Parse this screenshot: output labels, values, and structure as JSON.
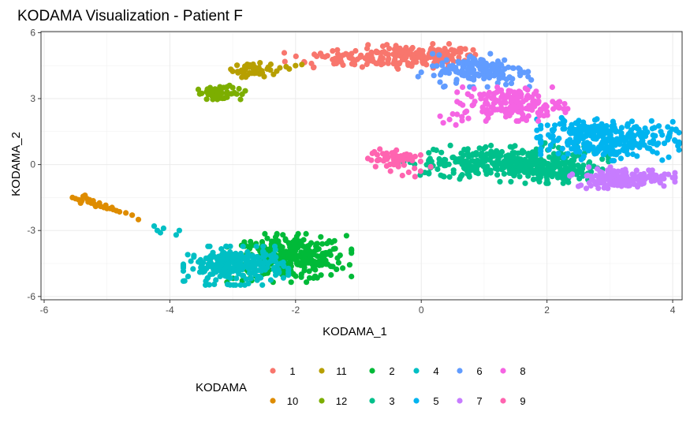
{
  "chart_data": {
    "type": "scatter",
    "title": "KODAMA Visualization - Patient F",
    "xlabel": "KODAMA_1",
    "ylabel": "KODAMA_2",
    "xlim": [
      -6.05,
      4.15
    ],
    "ylim": [
      -6.15,
      6.05
    ],
    "xticks": [
      -6,
      -4,
      -2,
      0,
      2,
      4
    ],
    "yticks": [
      -6,
      -3,
      0,
      3,
      6
    ],
    "grid": true,
    "legend_title": "KODAMA",
    "legend_position": "bottom",
    "series": [
      {
        "name": "1",
        "color": "#F8766D",
        "clusters": [
          {
            "cx": -0.2,
            "cy": 4.9,
            "sx": 0.55,
            "sy": 0.25,
            "n": 150
          },
          {
            "cx": -1.3,
            "cy": 4.85,
            "sx": 0.4,
            "sy": 0.2,
            "n": 40
          },
          {
            "cx": 0.2,
            "cy": 5.05,
            "sx": 0.3,
            "sy": 0.2,
            "n": 40
          }
        ]
      },
      {
        "name": "10",
        "color": "#DE8C00",
        "points": [
          [
            -5.55,
            -1.5
          ],
          [
            -5.5,
            -1.55
          ],
          [
            -5.45,
            -1.6
          ],
          [
            -5.4,
            -1.65
          ],
          [
            -5.35,
            -1.4
          ],
          [
            -5.3,
            -1.7
          ],
          [
            -5.25,
            -1.75
          ],
          [
            -5.2,
            -1.8
          ],
          [
            -5.15,
            -1.85
          ],
          [
            -5.1,
            -1.9
          ],
          [
            -5.05,
            -1.95
          ],
          [
            -5.0,
            -2.0
          ],
          [
            -4.95,
            -2.0
          ],
          [
            -4.9,
            -2.05
          ],
          [
            -4.85,
            -2.1
          ],
          [
            -4.8,
            -2.15
          ],
          [
            -4.7,
            -2.2
          ],
          [
            -4.6,
            -2.3
          ],
          [
            -4.5,
            -2.5
          ],
          [
            -5.32,
            -1.55
          ],
          [
            -5.42,
            -1.75
          ],
          [
            -5.22,
            -1.65
          ],
          [
            -5.12,
            -1.75
          ],
          [
            -5.02,
            -1.85
          ],
          [
            -5.28,
            -1.6
          ],
          [
            -5.38,
            -1.45
          ],
          [
            -5.18,
            -1.9
          ],
          [
            -4.92,
            -1.95
          ]
        ]
      },
      {
        "name": "11",
        "color": "#B79F00",
        "clusters": [
          {
            "cx": -2.7,
            "cy": 4.3,
            "sx": 0.15,
            "sy": 0.15,
            "n": 40
          }
        ],
        "points": [
          [
            -2.4,
            4.3
          ],
          [
            -2.3,
            4.25
          ],
          [
            -2.25,
            4.4
          ],
          [
            -2.15,
            4.45
          ],
          [
            -2.1,
            4.35
          ],
          [
            -2.0,
            4.5
          ],
          [
            -1.9,
            4.55
          ],
          [
            -2.35,
            4.1
          ],
          [
            -2.5,
            4.0
          ]
        ]
      },
      {
        "name": "12",
        "color": "#7CAE00",
        "clusters": [
          {
            "cx": -3.25,
            "cy": 3.25,
            "sx": 0.17,
            "sy": 0.13,
            "n": 45
          }
        ],
        "points": [
          [
            -3.0,
            3.5
          ],
          [
            -2.9,
            3.45
          ],
          [
            -2.8,
            3.35
          ],
          [
            -2.85,
            3.2
          ],
          [
            -3.05,
            3.6
          ]
        ]
      },
      {
        "name": "2",
        "color": "#00BA38",
        "clusters": [
          {
            "cx": -2.1,
            "cy": -4.25,
            "sx": 0.45,
            "sy": 0.5,
            "n": 330
          }
        ]
      },
      {
        "name": "3",
        "color": "#00C08B",
        "clusters": [
          {
            "cx": 1.55,
            "cy": 0.1,
            "sx": 0.65,
            "sy": 0.4,
            "n": 280
          },
          {
            "cx": 0.6,
            "cy": 0.0,
            "sx": 0.4,
            "sy": 0.25,
            "n": 60
          },
          {
            "cx": 2.2,
            "cy": -0.3,
            "sx": 0.4,
            "sy": 0.25,
            "n": 80
          }
        ]
      },
      {
        "name": "4",
        "color": "#00BFC4",
        "clusters": [
          {
            "cx": -2.95,
            "cy": -4.6,
            "sx": 0.38,
            "sy": 0.4,
            "n": 280
          }
        ],
        "points": [
          [
            -4.25,
            -2.8
          ],
          [
            -4.2,
            -3.0
          ],
          [
            -4.15,
            -3.1
          ],
          [
            -4.1,
            -2.9
          ],
          [
            -3.9,
            -3.2
          ],
          [
            -3.85,
            -3.0
          ]
        ]
      },
      {
        "name": "5",
        "color": "#00B4F0",
        "clusters": [
          {
            "cx": 3.0,
            "cy": 1.1,
            "sx": 0.5,
            "sy": 0.42,
            "n": 260
          },
          {
            "cx": 2.5,
            "cy": 1.6,
            "sx": 0.3,
            "sy": 0.25,
            "n": 50
          }
        ]
      },
      {
        "name": "6",
        "color": "#619CFF",
        "clusters": [
          {
            "cx": 0.95,
            "cy": 4.3,
            "sx": 0.35,
            "sy": 0.35,
            "n": 150
          }
        ],
        "points": [
          [
            0.0,
            4.2
          ],
          [
            -0.05,
            4.0
          ],
          [
            0.2,
            4.05
          ],
          [
            1.6,
            4.2
          ],
          [
            1.7,
            4.0
          ],
          [
            1.75,
            3.85
          ],
          [
            1.45,
            3.9
          ]
        ]
      },
      {
        "name": "7",
        "color": "#C77CFF",
        "clusters": [
          {
            "cx": 3.2,
            "cy": -0.6,
            "sx": 0.38,
            "sy": 0.22,
            "n": 160
          }
        ]
      },
      {
        "name": "8",
        "color": "#F564E3",
        "clusters": [
          {
            "cx": 1.45,
            "cy": 2.75,
            "sx": 0.4,
            "sy": 0.35,
            "n": 170
          }
        ],
        "points": [
          [
            0.3,
            2.2
          ],
          [
            0.35,
            1.9
          ],
          [
            0.45,
            2.05
          ],
          [
            0.55,
            1.8
          ],
          [
            0.5,
            2.3
          ],
          [
            0.65,
            2.0
          ],
          [
            0.75,
            2.1
          ],
          [
            0.95,
            3.0
          ],
          [
            1.0,
            3.2
          ]
        ]
      },
      {
        "name": "9",
        "color": "#FF64B0",
        "clusters": [
          {
            "cx": -0.45,
            "cy": 0.25,
            "sx": 0.2,
            "sy": 0.25,
            "n": 60
          }
        ],
        "points": [
          [
            -0.1,
            -0.55
          ],
          [
            -0.2,
            -0.35
          ],
          [
            0.15,
            -0.1
          ],
          [
            -0.7,
            0.45
          ],
          [
            -0.3,
            -0.5
          ]
        ]
      }
    ]
  },
  "legend": {
    "title": "KODAMA",
    "items": [
      {
        "label": "1",
        "color": "#F8766D"
      },
      {
        "label": "11",
        "color": "#B79F00"
      },
      {
        "label": "2",
        "color": "#00BA38"
      },
      {
        "label": "4",
        "color": "#00BFC4"
      },
      {
        "label": "6",
        "color": "#619CFF"
      },
      {
        "label": "8",
        "color": "#F564E3"
      },
      {
        "label": "10",
        "color": "#DE8C00"
      },
      {
        "label": "12",
        "color": "#7CAE00"
      },
      {
        "label": "3",
        "color": "#00C08B"
      },
      {
        "label": "5",
        "color": "#00B4F0"
      },
      {
        "label": "7",
        "color": "#C77CFF"
      },
      {
        "label": "9",
        "color": "#FF64B0"
      }
    ]
  }
}
